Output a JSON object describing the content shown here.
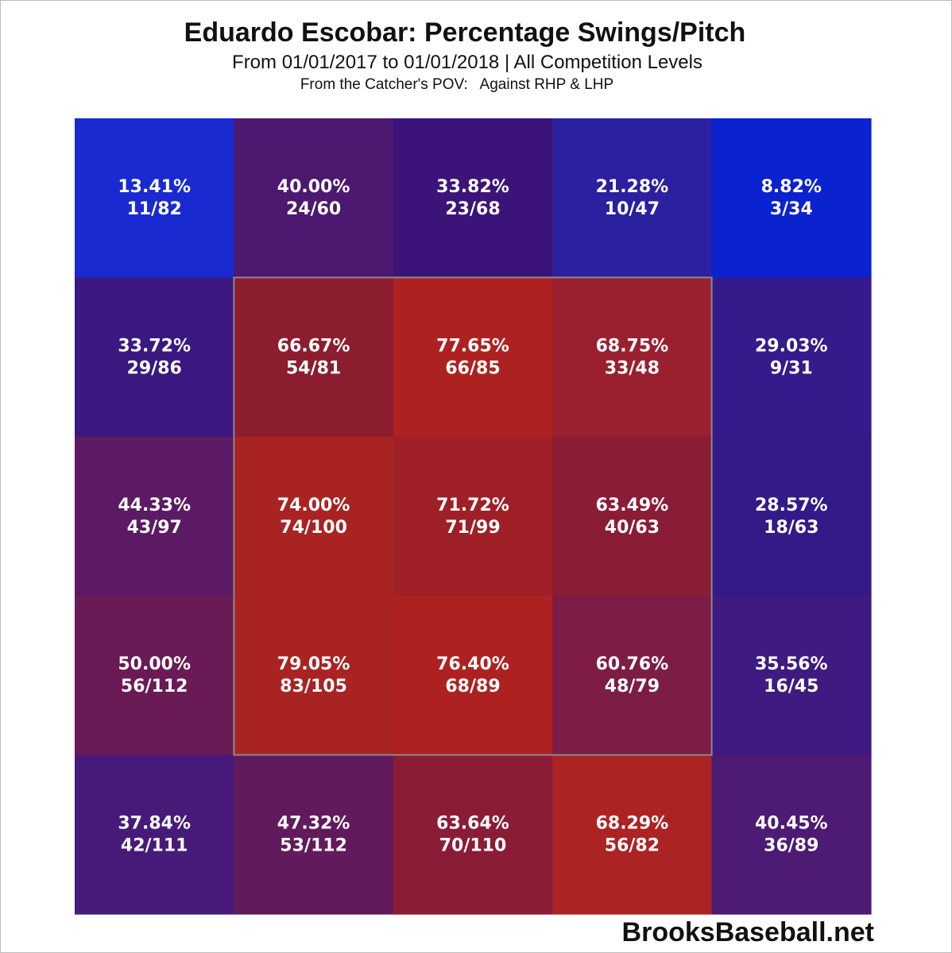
{
  "title": "Eduardo Escobar: Percentage Swings/Pitch",
  "subtitle": "From 01/01/2017 to 01/01/2018 | All Competition Levels",
  "subtitle2": "From the Catcher's POV:   Against RHP & LHP",
  "credit": "BrooksBaseball.net",
  "chart_data": {
    "type": "heatmap",
    "rows": 5,
    "cols": 5,
    "strike_zone": {
      "rows": [
        1,
        3
      ],
      "cols": [
        1,
        3
      ]
    },
    "cells": [
      [
        {
          "pct": "13.41%",
          "frac": "11/82",
          "color": "#1a2ad1"
        },
        {
          "pct": "40.00%",
          "frac": "24/60",
          "color": "#4d1870"
        },
        {
          "pct": "33.82%",
          "frac": "23/68",
          "color": "#3c1479"
        },
        {
          "pct": "21.28%",
          "frac": "10/47",
          "color": "#2a20a0"
        },
        {
          "pct": "8.82%",
          "frac": "3/34",
          "color": "#0a22cf"
        }
      ],
      [
        {
          "pct": "33.72%",
          "frac": "29/86",
          "color": "#3a1880"
        },
        {
          "pct": "66.67%",
          "frac": "54/81",
          "color": "#8c1d2e"
        },
        {
          "pct": "77.65%",
          "frac": "66/85",
          "color": "#ad2220"
        },
        {
          "pct": "68.75%",
          "frac": "33/48",
          "color": "#9a2030"
        },
        {
          "pct": "29.03%",
          "frac": "9/31",
          "color": "#341a8a"
        }
      ],
      [
        {
          "pct": "44.33%",
          "frac": "43/97",
          "color": "#5b1a63"
        },
        {
          "pct": "74.00%",
          "frac": "74/100",
          "color": "#a82322"
        },
        {
          "pct": "71.72%",
          "frac": "71/99",
          "color": "#9e2026"
        },
        {
          "pct": "63.49%",
          "frac": "40/63",
          "color": "#8a1c36"
        },
        {
          "pct": "28.57%",
          "frac": "18/63",
          "color": "#331a88"
        }
      ],
      [
        {
          "pct": "50.00%",
          "frac": "56/112",
          "color": "#6a1a55"
        },
        {
          "pct": "79.05%",
          "frac": "83/105",
          "color": "#a82322"
        },
        {
          "pct": "76.40%",
          "frac": "68/89",
          "color": "#ad2220"
        },
        {
          "pct": "60.76%",
          "frac": "48/79",
          "color": "#7d1c44"
        },
        {
          "pct": "35.56%",
          "frac": "16/45",
          "color": "#3f1a80"
        }
      ],
      [
        {
          "pct": "37.84%",
          "frac": "42/111",
          "color": "#471a7a"
        },
        {
          "pct": "47.32%",
          "frac": "53/112",
          "color": "#611a5c"
        },
        {
          "pct": "63.64%",
          "frac": "70/110",
          "color": "#8a1c36"
        },
        {
          "pct": "68.29%",
          "frac": "56/82",
          "color": "#ab2323"
        },
        {
          "pct": "40.45%",
          "frac": "36/89",
          "color": "#4d1a74"
        }
      ]
    ]
  }
}
